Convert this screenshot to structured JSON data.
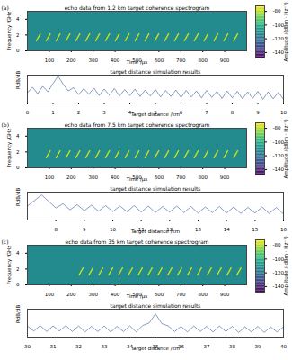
{
  "chart_data": [
    {
      "type": "heatmap",
      "panel_label": "(a)",
      "title": "echo data from 1.2 km target coherence spectrogram",
      "xlabel": "Time /μs",
      "ylabel": "Frequency /GHz",
      "xlim": [
        0,
        1000
      ],
      "xticks": [
        100,
        200,
        300,
        400,
        500,
        600,
        700,
        800,
        900
      ],
      "ylim": [
        0,
        5
      ],
      "yticks": [
        0,
        2,
        4
      ],
      "background": -112,
      "chirps": {
        "start": [
          40,
          85,
          130,
          175,
          220,
          265,
          310,
          355,
          400,
          445,
          490,
          535,
          580,
          625,
          670,
          715,
          760,
          805,
          850,
          895,
          940
        ],
        "duration": 20,
        "band": [
          1.2,
          2.2
        ],
        "amplitude": -78
      },
      "colorbar": {
        "label": "Amplitude /(dBm · Hz⁻¹)",
        "lim": [
          -148,
          -72
        ],
        "ticks": [
          -80,
          -100,
          -120,
          -140
        ]
      }
    },
    {
      "type": "line",
      "title": "target distance simulation results",
      "xlabel": "Target distance /km",
      "ylabel": "RdB/dB",
      "x": [
        0,
        0.2,
        0.4,
        0.6,
        0.8,
        1.0,
        1.2,
        1.4,
        1.6,
        1.8,
        2.0,
        2.2,
        2.4,
        2.6,
        2.8,
        3.0,
        3.2,
        3.4,
        3.6,
        3.8,
        4.0,
        4.2,
        4.4,
        4.6,
        4.8,
        5.0,
        5.2,
        5.4,
        5.6,
        5.8,
        6.0,
        6.2,
        6.4,
        6.6,
        6.8,
        7.0,
        7.2,
        7.4,
        7.6,
        7.8,
        8.0,
        8.2,
        8.4,
        8.6,
        8.8,
        9.0,
        9.2,
        9.4,
        9.6,
        9.8,
        10.0
      ],
      "values": [
        -38,
        -26,
        -40,
        -24,
        -36,
        -18,
        -2,
        -20,
        -34,
        -27,
        -42,
        -29,
        -41,
        -28,
        -44,
        -30,
        -43,
        -29,
        -45,
        -31,
        -44,
        -30,
        -46,
        -32,
        -45,
        -31,
        -47,
        -33,
        -46,
        -32,
        -48,
        -33,
        -47,
        -34,
        -49,
        -33,
        -48,
        -35,
        -50,
        -34,
        -49,
        -35,
        -51,
        -36,
        -50,
        -35,
        -52,
        -36,
        -51,
        -37,
        -52
      ],
      "color": "#36599b",
      "xlim": [
        0,
        10
      ],
      "xticks": [
        0,
        1,
        2,
        3,
        4,
        5,
        6,
        7,
        8,
        9,
        10
      ],
      "ylim": [
        -60,
        0
      ],
      "tick_labels": "x"
    },
    {
      "type": "heatmap",
      "panel_label": "(b)",
      "title": "echo data from 7.5 km target coherence spectrogram",
      "xlabel": "Time /μs",
      "ylabel": "Frequency /GHz",
      "xlim": [
        0,
        1000
      ],
      "xticks": [
        100,
        200,
        300,
        400,
        500,
        600,
        700,
        800,
        900
      ],
      "ylim": [
        0,
        5
      ],
      "yticks": [
        0,
        2,
        4
      ],
      "background": -112,
      "chirps": {
        "start": [
          85,
          130,
          175,
          220,
          265,
          310,
          355,
          400,
          445,
          490,
          535,
          580,
          625,
          670,
          715,
          760,
          805,
          850,
          895,
          940
        ],
        "duration": 20,
        "band": [
          1.2,
          2.2
        ],
        "amplitude": -78
      },
      "colorbar": {
        "label": "Amplitude /(dBm · Hz⁻¹)",
        "lim": [
          -148,
          -72
        ],
        "ticks": [
          -80,
          -100,
          -120,
          -140
        ]
      }
    },
    {
      "type": "line",
      "title": "target distance simulation results",
      "xlabel": "Target distance /km",
      "ylabel": "RdB/dB",
      "x": [
        7.0,
        7.25,
        7.5,
        7.75,
        8.0,
        8.25,
        8.5,
        8.75,
        9.0,
        9.25,
        9.5,
        9.75,
        10.0,
        10.25,
        10.5,
        10.75,
        11.0,
        11.25,
        11.5,
        11.75,
        12.0,
        12.25,
        12.5,
        12.75,
        13.0,
        13.25,
        13.5,
        13.75,
        14.0,
        14.25,
        14.5,
        14.75,
        15.0,
        15.25,
        15.5,
        15.75,
        16.0
      ],
      "values": [
        -30,
        -18,
        -6,
        -20,
        -34,
        -25,
        -38,
        -27,
        -40,
        -28,
        -41,
        -29,
        -42,
        -30,
        -42,
        -29,
        -43,
        -30,
        -44,
        -31,
        -43,
        -30,
        -44,
        -31,
        -45,
        -32,
        -44,
        -31,
        -45,
        -32,
        -46,
        -33,
        -45,
        -32,
        -46,
        -33,
        -47
      ],
      "color": "#36599b",
      "xlim": [
        7,
        16
      ],
      "xticks": [
        8,
        9,
        10,
        11,
        12,
        13,
        14,
        15,
        16
      ],
      "ylim": [
        -60,
        0
      ],
      "tick_labels": "x"
    },
    {
      "type": "heatmap",
      "panel_label": "(c)",
      "title": "echo data from 35 km target coherence spectrogram",
      "xlabel": "Time /μs",
      "ylabel": "Frequency /GHz",
      "xlim": [
        0,
        1000
      ],
      "xticks": [
        100,
        200,
        300,
        400,
        500,
        600,
        700,
        800,
        900
      ],
      "ylim": [
        0,
        5
      ],
      "yticks": [
        0,
        2,
        4
      ],
      "background": -112,
      "chirps": {
        "start": [
          235,
          280,
          325,
          370,
          415,
          460,
          505,
          550,
          595,
          640,
          685,
          730,
          775,
          820,
          865,
          910,
          955
        ],
        "duration": 20,
        "band": [
          1.2,
          2.2
        ],
        "amplitude": -78
      },
      "colorbar": {
        "label": "Amplitude /(dBm · Hz⁻¹)",
        "lim": [
          -148,
          -72
        ],
        "ticks": [
          -80,
          -100,
          -120,
          -140
        ]
      }
    },
    {
      "type": "line",
      "title": "target distance simulation results",
      "xlabel": "Target distance /km",
      "ylabel": "RdB/dB",
      "x": [
        30.0,
        30.25,
        30.5,
        30.75,
        31.0,
        31.25,
        31.5,
        31.75,
        32.0,
        32.25,
        32.5,
        32.75,
        33.0,
        33.25,
        33.5,
        33.75,
        34.0,
        34.25,
        34.5,
        34.75,
        35.0,
        35.25,
        35.5,
        35.75,
        36.0,
        36.25,
        36.5,
        36.75,
        37.0,
        37.25,
        37.5,
        37.75,
        38.0,
        38.25,
        38.5,
        38.75,
        39.0,
        39.25,
        39.5,
        39.75,
        40.0
      ],
      "values": [
        -36,
        -47,
        -35,
        -48,
        -36,
        -47,
        -35,
        -48,
        -36,
        -49,
        -37,
        -48,
        -36,
        -49,
        -37,
        -48,
        -36,
        -49,
        -35,
        -30,
        -10,
        -31,
        -36,
        -48,
        -37,
        -49,
        -36,
        -48,
        -37,
        -49,
        -36,
        -48,
        -37,
        -50,
        -38,
        -49,
        -37,
        -50,
        -38,
        -49,
        -38
      ],
      "color": "#36599b",
      "xlim": [
        30,
        40
      ],
      "xticks": [
        30,
        31,
        32,
        33,
        34,
        35,
        36,
        37,
        38,
        39,
        40
      ],
      "ylim": [
        -60,
        0
      ],
      "tick_labels": "x"
    }
  ]
}
